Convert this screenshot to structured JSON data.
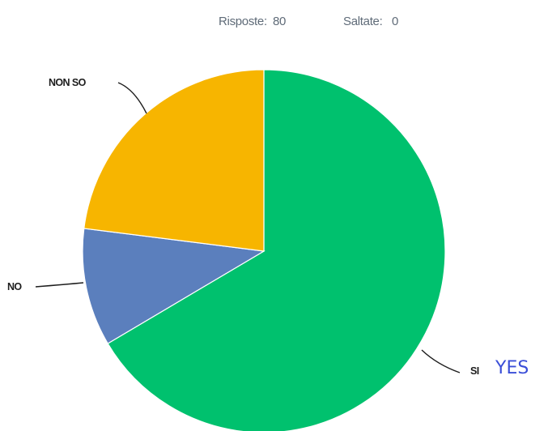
{
  "summary": {
    "responses_label": "Risposte:",
    "responses_value": "80",
    "skipped_label": "Saltate:",
    "skipped_value": "0"
  },
  "chart_data": {
    "type": "pie",
    "title": "",
    "slices": [
      {
        "label": "SI",
        "value": 66.5,
        "color": "#00c16e"
      },
      {
        "label": "NO",
        "value": 10.5,
        "color": "#5b7fbd"
      },
      {
        "label": "NON SO",
        "value": 23.0,
        "color": "#f7b500"
      }
    ],
    "start": "12 o'clock",
    "direction": "clockwise",
    "annotation": "YES"
  }
}
